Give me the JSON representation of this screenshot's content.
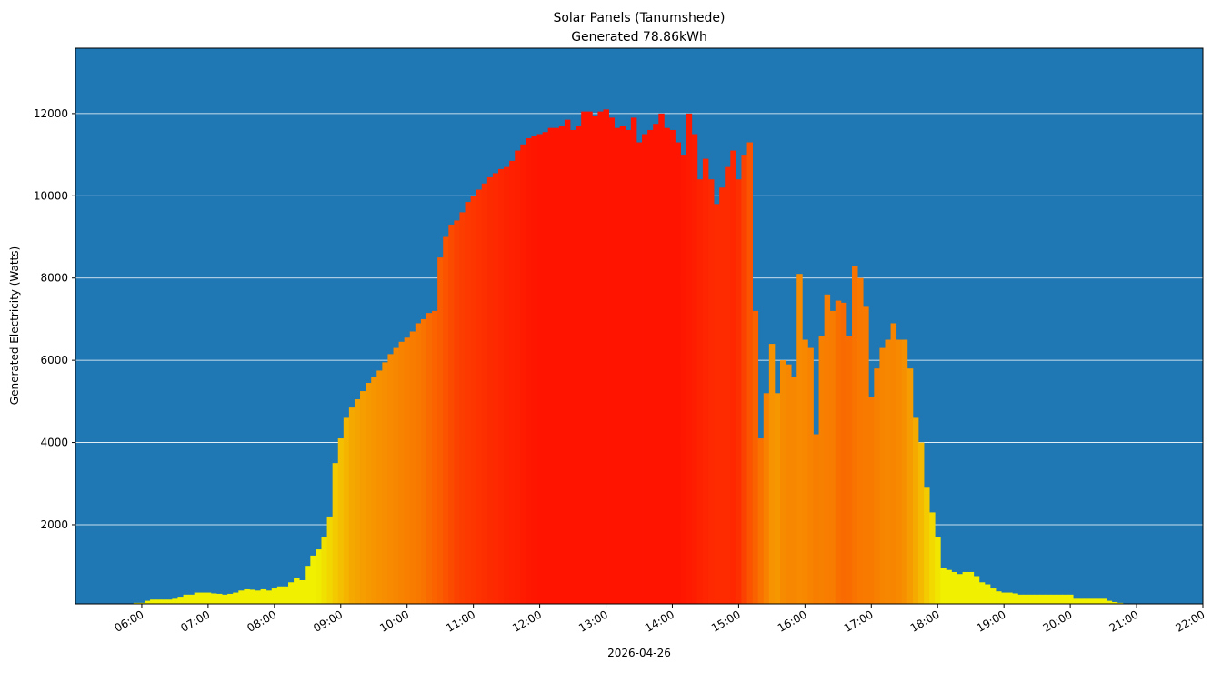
{
  "chart_data": {
    "type": "bar",
    "title": "Solar Panels (Tanumshede)",
    "subtitle": "Generated 78.86kWh",
    "xlabel": "2026-04-26",
    "ylabel": "Generated Electricity (Watts)",
    "xlim": [
      "05:00",
      "22:00"
    ],
    "ylim": [
      75,
      13590
    ],
    "grid": "horizontal",
    "interval_minutes": 5,
    "start": "05:15",
    "x_ticks": [
      "06:00",
      "07:00",
      "08:00",
      "09:00",
      "10:00",
      "11:00",
      "12:00",
      "13:00",
      "14:00",
      "15:00",
      "16:00",
      "17:00",
      "18:00",
      "19:00",
      "20:00",
      "21:00",
      "22:00"
    ],
    "y_ticks": [
      2000,
      4000,
      6000,
      8000,
      10000,
      12000
    ],
    "colors": {
      "background": "#1f77b4",
      "low": "#f0f000",
      "mid": "#f78c00",
      "high": "#ff1400",
      "grid": "#ffffff"
    },
    "values": [
      50,
      50,
      50,
      0,
      30,
      50,
      50,
      50,
      100,
      100,
      150,
      180,
      180,
      180,
      180,
      200,
      250,
      300,
      300,
      350,
      350,
      350,
      330,
      320,
      300,
      320,
      350,
      400,
      430,
      420,
      400,
      430,
      400,
      450,
      500,
      500,
      600,
      700,
      650,
      1000,
      1250,
      1400,
      1700,
      2200,
      3500,
      4100,
      4600,
      4850,
      5050,
      5250,
      5450,
      5600,
      5750,
      5950,
      6150,
      6300,
      6450,
      6550,
      6700,
      6900,
      7000,
      7150,
      7200,
      8500,
      9000,
      9300,
      9400,
      9600,
      9850,
      10000,
      10150,
      10300,
      10450,
      10550,
      10650,
      10700,
      10850,
      11100,
      11250,
      11400,
      11450,
      11500,
      11550,
      11650,
      11650,
      11700,
      11850,
      11600,
      11700,
      12050,
      12050,
      11950,
      12050,
      12100,
      11900,
      11650,
      11700,
      11600,
      11900,
      11300,
      11500,
      11600,
      11750,
      12000,
      11650,
      11600,
      11300,
      11000,
      12000,
      11500,
      10400,
      10900,
      10400,
      9800,
      10200,
      10700,
      11100,
      10400,
      11000,
      11300,
      7200,
      4100,
      5200,
      6400,
      5200,
      6000,
      5900,
      5600,
      8100,
      6500,
      6300,
      4200,
      6600,
      7600,
      7200,
      7450,
      7400,
      6600,
      8300,
      8000,
      7300,
      5100,
      5800,
      6300,
      6500,
      6900,
      6500,
      6500,
      5800,
      4600,
      4000,
      2900,
      2300,
      1700,
      950,
      900,
      850,
      800,
      850,
      850,
      750,
      600,
      550,
      450,
      380,
      350,
      350,
      330,
      300,
      300,
      300,
      300,
      300,
      300,
      300,
      300,
      300,
      300,
      200,
      200,
      200,
      200,
      200,
      200,
      150,
      120,
      100,
      60,
      50,
      40
    ]
  }
}
